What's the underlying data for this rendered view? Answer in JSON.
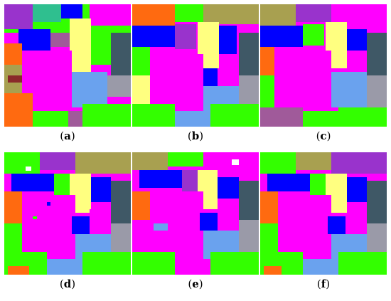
{
  "panels": [
    {
      "id": "a",
      "caption_open": "(",
      "caption_letter": "a",
      "caption_close": ")"
    },
    {
      "id": "b",
      "caption_open": "(",
      "caption_letter": "b",
      "caption_close": ")"
    },
    {
      "id": "c",
      "caption_open": "(",
      "caption_letter": "c",
      "caption_close": ")"
    },
    {
      "id": "d",
      "caption_open": "(",
      "caption_letter": "d",
      "caption_close": ")"
    },
    {
      "id": "e",
      "caption_open": "(",
      "caption_letter": "e",
      "caption_close": ")"
    },
    {
      "id": "f",
      "caption_open": "(",
      "caption_letter": "f",
      "caption_close": ")"
    }
  ],
  "palette": {
    "magenta": "#ff00ff",
    "blue": "#0000ff",
    "green": "#33ff00",
    "light_blue": "#6aa2ee",
    "yellow": "#ffff80",
    "slate": "#3f5866",
    "orange": "#ff6a10",
    "olive": "#a8a050",
    "purple": "#9933cc",
    "mauve": "#a05a9a",
    "teal": "#2fbf8f",
    "gray": "#9a9aa8",
    "dark_red": "#8a2a2a",
    "white": "#ffffff"
  }
}
